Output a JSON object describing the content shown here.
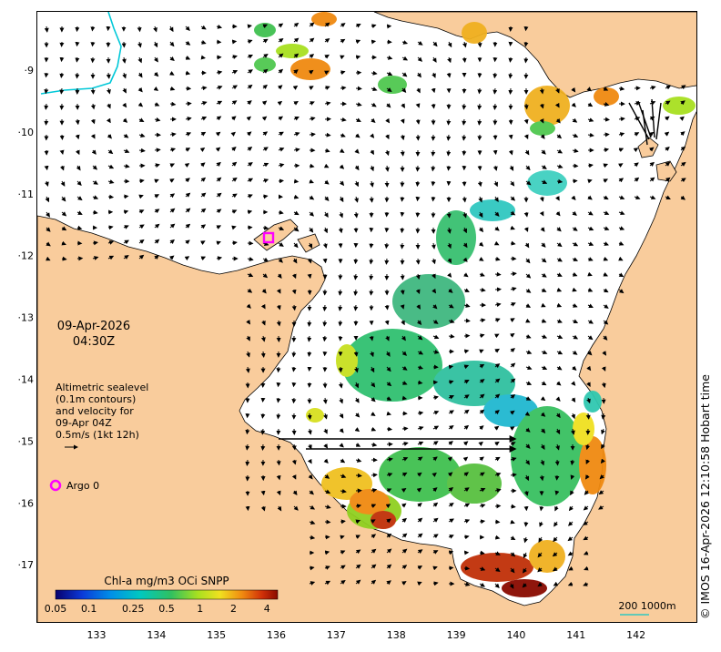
{
  "map": {
    "date": "09-Apr-2026",
    "time": "04:30Z",
    "legend_text": [
      "Altimetric sealevel",
      "(0.1m contours)",
      "and velocity for",
      "09-Apr 04Z",
      "0.5m/s (1kt 12h)"
    ],
    "argo_label": "Argo 0",
    "credit": "© IMOS 16-Apr-2026 12:10:58 Hobart time",
    "scale_label": "200  1000m",
    "lat_ticks": [
      "·9",
      "·10",
      "·11",
      "·12",
      "·13",
      "·14",
      "·15",
      "·16",
      "·17"
    ],
    "lon_ticks": [
      "133",
      "134",
      "135",
      "136",
      "137",
      "138",
      "139",
      "140",
      "141",
      "142"
    ],
    "colorbar": {
      "title": "Chl-a mg/m3 OCi SNPP",
      "tick_labels": [
        "0.05",
        "0.1",
        "0.25",
        "0.5",
        "1",
        "2",
        "4"
      ],
      "tick_values": [
        0.05,
        0.1,
        0.25,
        0.5,
        1,
        2,
        4
      ],
      "range": [
        0.05,
        5
      ]
    },
    "colors": {
      "land": "#f9cc9c",
      "ocean": "#ffffff",
      "argo": "#ff00ff",
      "river": "#00c8d8",
      "scale": "#30c8c0"
    }
  }
}
